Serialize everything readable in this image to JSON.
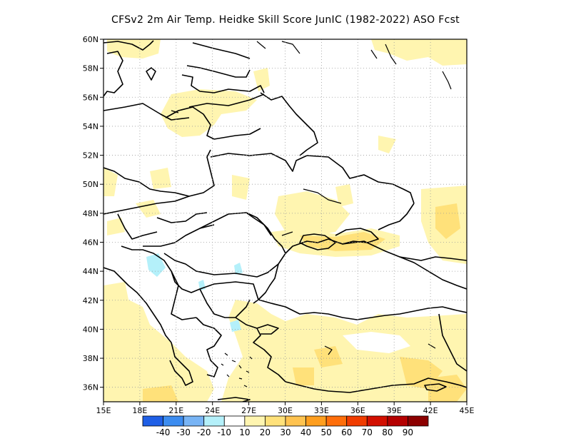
{
  "title": "CFSv2  2m Air Temp. Heidke Skill Score JunIC (1982-2022) ASO Fcst",
  "map": {
    "lon_range": [
      15,
      45
    ],
    "lat_range": [
      35,
      60
    ],
    "lon_ticks": [
      "15E",
      "18E",
      "21E",
      "24E",
      "27E",
      "30E",
      "33E",
      "36E",
      "39E",
      "42E",
      "45E"
    ],
    "lat_ticks": [
      "36N",
      "38N",
      "40N",
      "42N",
      "44N",
      "46N",
      "48N",
      "50N",
      "52N",
      "54N",
      "56N",
      "58N",
      "60N"
    ],
    "grid": "dotted"
  },
  "colorbar": {
    "labels": [
      "-40",
      "-30",
      "-20",
      "-10",
      "10",
      "20",
      "30",
      "40",
      "50",
      "60",
      "70",
      "80",
      "90"
    ],
    "colors": [
      "#1f5fe6",
      "#3c8cf0",
      "#78b4f5",
      "#b4f0fa",
      "#ffffff",
      "#fff5b0",
      "#ffe17a",
      "#ffc350",
      "#ff9e1e",
      "#ff6e0a",
      "#f03c00",
      "#d20f00",
      "#b40000",
      "#8c0000"
    ]
  }
}
